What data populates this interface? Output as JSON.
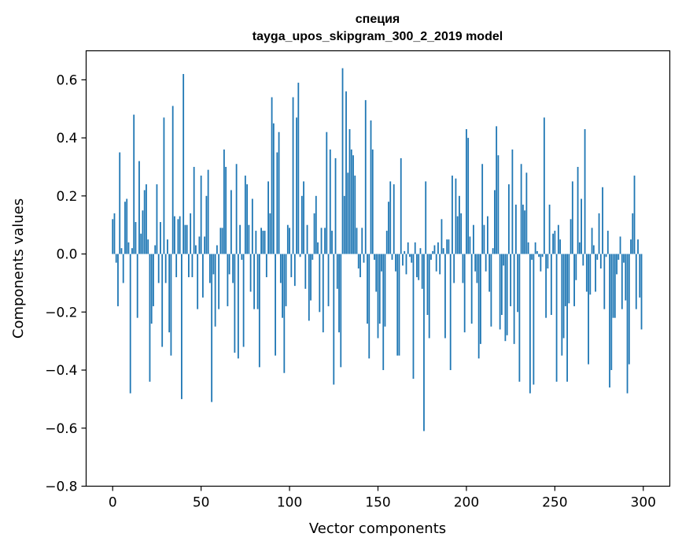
{
  "chart_data": {
    "type": "bar",
    "title": "специя",
    "subtitle": "tayga_upos_skipgram_300_2_2019 model",
    "xlabel": "Vector components",
    "ylabel": "Components values",
    "xlim": [
      -15,
      315
    ],
    "ylim": [
      -0.8,
      0.7
    ],
    "xticks": [
      0,
      50,
      100,
      150,
      200,
      250,
      300
    ],
    "xtick_labels": [
      "0",
      "50",
      "100",
      "150",
      "200",
      "250",
      "300"
    ],
    "yticks": [
      -0.8,
      -0.6,
      -0.4,
      -0.2,
      0.0,
      0.2,
      0.4,
      0.6
    ],
    "ytick_labels": [
      "−0.8",
      "−0.6",
      "−0.4",
      "−0.2",
      "0.0",
      "0.2",
      "0.4",
      "0.6"
    ],
    "bar_color": "#1f77b4",
    "grid": false,
    "values": [
      0.12,
      0.14,
      -0.03,
      -0.18,
      0.35,
      0.02,
      -0.1,
      0.18,
      0.19,
      0.04,
      -0.48,
      0.02,
      0.48,
      0.11,
      -0.22,
      0.32,
      0.07,
      0.15,
      0.22,
      0.24,
      0.05,
      -0.44,
      -0.24,
      -0.18,
      0.03,
      0.24,
      -0.1,
      0.11,
      -0.32,
      0.47,
      -0.1,
      0.05,
      -0.27,
      -0.35,
      0.51,
      0.13,
      -0.08,
      0.12,
      0.13,
      -0.5,
      0.62,
      0.1,
      0.1,
      -0.08,
      0.14,
      -0.08,
      0.3,
      0.03,
      -0.19,
      0.06,
      0.27,
      -0.15,
      0.06,
      0.2,
      0.29,
      -0.1,
      -0.51,
      -0.07,
      -0.25,
      0.03,
      -0.19,
      0.09,
      0.09,
      0.36,
      0.3,
      -0.18,
      -0.07,
      0.22,
      -0.1,
      -0.34,
      0.31,
      -0.36,
      0.1,
      -0.02,
      -0.32,
      0.27,
      0.24,
      0.1,
      -0.13,
      0.19,
      -0.19,
      0.08,
      -0.19,
      -0.39,
      0.09,
      0.08,
      0.08,
      -0.08,
      0.25,
      0.14,
      0.54,
      0.45,
      -0.35,
      0.35,
      0.42,
      -0.1,
      -0.22,
      -0.41,
      -0.18,
      0.1,
      0.09,
      -0.08,
      0.54,
      -0.11,
      0.47,
      0.59,
      -0.01,
      0.2,
      0.25,
      -0.12,
      0.1,
      -0.23,
      -0.16,
      -0.02,
      0.14,
      0.2,
      0.04,
      -0.2,
      0.09,
      -0.27,
      0.09,
      0.42,
      -0.18,
      0.36,
      0.08,
      -0.45,
      0.33,
      -0.12,
      -0.27,
      -0.39,
      0.64,
      0.2,
      0.56,
      0.28,
      0.43,
      0.36,
      0.34,
      0.27,
      0.09,
      -0.05,
      -0.08,
      0.09,
      -0.03,
      0.53,
      -0.24,
      -0.36,
      0.46,
      0.36,
      -0.02,
      -0.13,
      -0.29,
      -0.24,
      -0.06,
      -0.4,
      -0.25,
      0.08,
      0.18,
      0.25,
      -0.02,
      0.24,
      -0.06,
      -0.35,
      -0.35,
      0.33,
      -0.04,
      0.01,
      -0.07,
      0.04,
      -0.01,
      -0.03,
      -0.43,
      0.04,
      -0.08,
      -0.09,
      0.02,
      -0.12,
      -0.61,
      0.25,
      -0.21,
      -0.29,
      -0.02,
      0.01,
      0.03,
      -0.06,
      0.04,
      -0.07,
      0.12,
      0.02,
      -0.29,
      0.05,
      0.05,
      -0.4,
      0.27,
      -0.1,
      0.26,
      0.13,
      0.2,
      0.14,
      -0.1,
      -0.27,
      0.43,
      0.4,
      0.06,
      -0.24,
      0.1,
      -0.06,
      -0.1,
      -0.36,
      -0.31,
      0.31,
      0.1,
      -0.06,
      0.13,
      -0.13,
      -0.25,
      0.02,
      0.22,
      0.44,
      0.34,
      -0.26,
      -0.21,
      -0.04,
      -0.3,
      -0.28,
      0.24,
      -0.18,
      0.36,
      -0.31,
      0.17,
      -0.2,
      -0.44,
      0.31,
      0.17,
      0.15,
      0.28,
      0.04,
      -0.48,
      -0.02,
      -0.45,
      0.04,
      0.01,
      -0.01,
      -0.06,
      -0.01,
      0.47,
      -0.22,
      -0.05,
      0.17,
      -0.21,
      0.07,
      0.08,
      -0.44,
      0.1,
      0.05,
      -0.35,
      -0.29,
      -0.18,
      -0.44,
      -0.17,
      0.12,
      0.25,
      -0.18,
      -0.09,
      0.3,
      0.04,
      0.19,
      -0.04,
      0.43,
      -0.13,
      -0.38,
      -0.14,
      0.09,
      0.03,
      -0.13,
      -0.02,
      0.14,
      -0.05,
      0.23,
      -0.19,
      -0.01,
      0.08,
      -0.46,
      -0.4,
      -0.22,
      -0.22,
      -0.07,
      -0.02,
      0.06,
      -0.19,
      -0.03,
      -0.16,
      -0.48,
      -0.38,
      0.05,
      0.14,
      0.27,
      -0.19,
      0.05,
      -0.15,
      -0.26
    ]
  }
}
